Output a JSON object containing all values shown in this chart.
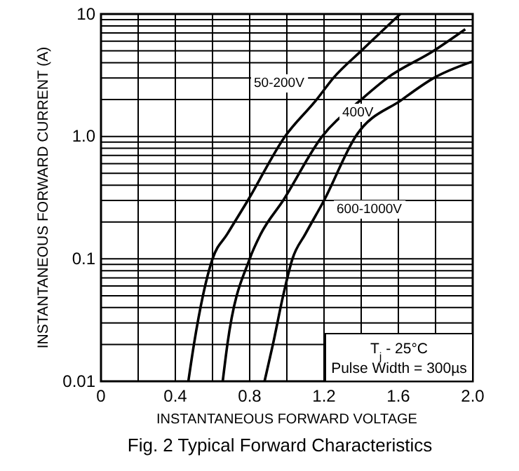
{
  "chart_data": {
    "type": "line",
    "title": "Fig. 2  Typical Forward Characteristics",
    "xlabel": "INSTANTANEOUS FORWARD VOLTAGE",
    "ylabel": "INSTANTANEOUS FORWARD CURRENT (A)",
    "log": "y",
    "grid": true,
    "marker": "none",
    "line_style": "solid",
    "xlim": [
      0,
      2.0
    ],
    "ylim": [
      0.01,
      10
    ],
    "xticks": [
      0,
      {
        "value": 0.2,
        "label": null
      },
      0.4,
      {
        "value": 0.6,
        "label": null
      },
      0.8,
      {
        "value": 1.0,
        "label": null
      },
      1.2,
      {
        "value": 1.4,
        "label": null
      },
      1.6,
      {
        "value": 1.8,
        "label": null
      },
      {
        "value": 2.0,
        "label": "2.0"
      }
    ],
    "yticks": [
      0.01,
      {
        "value": 0.02,
        "label": null
      },
      {
        "value": 0.03,
        "label": null
      },
      {
        "value": 0.04,
        "label": null
      },
      {
        "value": 0.05,
        "label": null
      },
      {
        "value": 0.06,
        "label": null
      },
      {
        "value": 0.07,
        "label": null
      },
      {
        "value": 0.08,
        "label": null
      },
      {
        "value": 0.09,
        "label": null
      },
      0.1,
      {
        "value": 0.2,
        "label": null
      },
      {
        "value": 0.3,
        "label": null
      },
      {
        "value": 0.4,
        "label": null
      },
      {
        "value": 0.5,
        "label": null
      },
      {
        "value": 0.6,
        "label": null
      },
      {
        "value": 0.7,
        "label": null
      },
      {
        "value": 0.8,
        "label": null
      },
      {
        "value": 0.9,
        "label": null
      },
      {
        "value": 1,
        "label": "1.0"
      },
      {
        "value": 2,
        "label": null
      },
      {
        "value": 3,
        "label": null
      },
      {
        "value": 4,
        "label": null
      },
      {
        "value": 5,
        "label": null
      },
      {
        "value": 6,
        "label": null
      },
      {
        "value": 7,
        "label": null
      },
      {
        "value": 8,
        "label": null
      },
      {
        "value": 9,
        "label": null
      },
      10
    ],
    "series": [
      {
        "name": "50-200V",
        "color": "#000000",
        "x": [
          0.47,
          0.5,
          0.6,
          0.68,
          0.79,
          0.99,
          1.16,
          1.25,
          1.4,
          1.61
        ],
        "values": [
          0.01,
          0.02,
          0.1,
          0.16,
          0.3,
          1,
          2,
          3,
          5,
          10
        ]
      },
      {
        "name": "400V",
        "color": "#000000",
        "x": [
          0.655,
          0.68,
          0.8,
          0.86,
          0.98,
          1.19,
          1.4,
          1.54,
          1.79,
          1.96
        ],
        "values": [
          0.01,
          0.02,
          0.1,
          0.16,
          0.3,
          1,
          2,
          3,
          5,
          7.5
        ]
      },
      {
        "name": "600-1000V",
        "color": "#000000",
        "x": [
          0.88,
          0.925,
          0.98,
          1.03,
          1.1,
          1.2,
          1.37,
          1.62,
          1.79,
          2.0
        ],
        "values": [
          0.01,
          0.02,
          0.05,
          0.1,
          0.16,
          0.3,
          1,
          2,
          3,
          4.1
        ]
      }
    ],
    "annotations": [
      "T$_{j}$ - 25°C",
      "Pulse Width = 300µs"
    ]
  }
}
